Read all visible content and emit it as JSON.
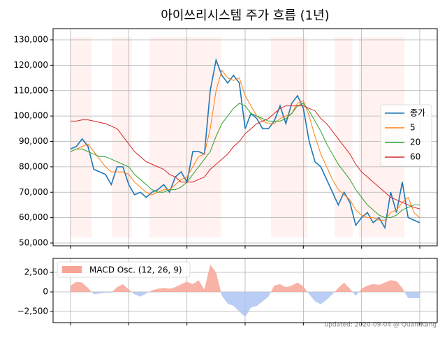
{
  "chart_data": [
    {
      "type": "line",
      "title": "아이쓰리시스템 주가 흐름 (1년)",
      "xlim": [
        -3,
        63
      ],
      "xticks": [
        0,
        10,
        20,
        30,
        40,
        50,
        60
      ],
      "ylim": [
        48900,
        134400
      ],
      "yticks": [
        {
          "value": 50000,
          "label": "50,000"
        },
        {
          "value": 60000,
          "label": "60,000"
        },
        {
          "value": 70000,
          "label": "70,000"
        },
        {
          "value": 80000,
          "label": "80,000"
        },
        {
          "value": 90000,
          "label": "90,000"
        },
        {
          "value": 100000,
          "label": "100,000"
        },
        {
          "value": 110000,
          "label": "110,000"
        },
        {
          "value": 120000,
          "label": "120,000"
        },
        {
          "value": 130000,
          "label": "130,000"
        }
      ],
      "grid": true,
      "legend": "right",
      "shade_color": "#fff2f0",
      "series": [
        {
          "name": "종가",
          "color": "#1f77b4",
          "values": [
            87000,
            88000,
            91000,
            88000,
            79000,
            78000,
            77000,
            73000,
            80000,
            80000,
            73000,
            69000,
            70000,
            68000,
            70000,
            71000,
            73000,
            70000,
            76000,
            78000,
            74000,
            86000,
            86000,
            85000,
            110000,
            122000,
            116000,
            113000,
            116000,
            113000,
            95000,
            101000,
            99000,
            95000,
            95000,
            98000,
            104000,
            97000,
            105000,
            108000,
            103000,
            90000,
            82000,
            80000,
            75000,
            70000,
            65000,
            70000,
            66000,
            57000,
            60000,
            62000,
            58000,
            60000,
            56000,
            70000,
            62000,
            74000,
            60000,
            59000,
            58000
          ]
        },
        {
          "name": "5",
          "color": "#ff7f0e",
          "values": [
            86000,
            87000,
            88000,
            89000,
            86000,
            83000,
            80000,
            78000,
            78000,
            78000,
            77000,
            74000,
            72000,
            70000,
            69000,
            70000,
            71000,
            71000,
            73000,
            75000,
            76000,
            80000,
            84000,
            85000,
            95000,
            110000,
            118000,
            115000,
            114000,
            115000,
            108000,
            104000,
            100000,
            98000,
            97000,
            97000,
            99000,
            100000,
            101000,
            105000,
            106000,
            100000,
            92000,
            85000,
            80000,
            75000,
            71000,
            69000,
            67000,
            63000,
            61000,
            60000,
            60000,
            59000,
            59000,
            62000,
            63000,
            66000,
            68000,
            62000,
            60000
          ]
        },
        {
          "name": "20",
          "color": "#2ca02c",
          "values": [
            86000,
            87000,
            87000,
            86000,
            85000,
            84000,
            84000,
            83000,
            82000,
            81000,
            80000,
            77000,
            75000,
            73000,
            71000,
            70000,
            70000,
            71000,
            71000,
            72000,
            74000,
            77000,
            80000,
            83000,
            86000,
            92000,
            97000,
            100000,
            103000,
            105000,
            104000,
            101000,
            100000,
            99000,
            98000,
            98000,
            98000,
            99000,
            101000,
            104000,
            105000,
            102000,
            98000,
            94000,
            89000,
            85000,
            81000,
            78000,
            75000,
            71000,
            68000,
            65000,
            63000,
            61000,
            60000,
            60000,
            61000,
            63000,
            64000,
            65000,
            65000
          ]
        },
        {
          "name": "60",
          "color": "#d62728",
          "values": [
            98000,
            98000,
            98500,
            98500,
            98000,
            97500,
            97000,
            96000,
            95000,
            92000,
            89000,
            86000,
            84000,
            82000,
            81000,
            80000,
            79000,
            77000,
            76000,
            74000,
            74000,
            74000,
            75000,
            76000,
            79000,
            81000,
            83000,
            85000,
            88000,
            90000,
            93000,
            95000,
            97000,
            98000,
            99000,
            101000,
            103000,
            104000,
            104000,
            104000,
            104000,
            103000,
            102000,
            99000,
            97000,
            94000,
            91000,
            88000,
            85000,
            81000,
            78000,
            76000,
            74000,
            72000,
            70000,
            68000,
            67000,
            66000,
            65000,
            64000,
            63500
          ]
        }
      ]
    },
    {
      "type": "area",
      "xlim": [
        -3,
        63
      ],
      "xticks": [
        0,
        10,
        20,
        30,
        40,
        50,
        60
      ],
      "ylim": [
        -3930,
        4290
      ],
      "yticks": [
        {
          "value": -2500,
          "label": "−2,500"
        },
        0,
        {
          "value": 2500,
          "label": "2,500"
        }
      ],
      "grid": true,
      "legend": "upper left",
      "series": [
        {
          "name": "MACD Osc. (12, 26, 9)",
          "color": "#f7a497",
          "negative_color": "#aec4f2",
          "values": [
            800,
            1300,
            1200,
            500,
            -300,
            -200,
            -100,
            -100,
            600,
            1000,
            300,
            -300,
            -600,
            -200,
            200,
            400,
            500,
            400,
            600,
            1000,
            1300,
            1000,
            1500,
            300,
            3500,
            2500,
            -500,
            -1500,
            -1800,
            -2500,
            -3200,
            -2000,
            -1800,
            -1200,
            -600,
            800,
            1000,
            600,
            800,
            1200,
            700,
            -300,
            -1200,
            -1600,
            -1000,
            -300,
            500,
            1200,
            400,
            -500,
            400,
            800,
            1000,
            900,
            1200,
            1500,
            1400,
            500,
            -800,
            -800,
            -800
          ]
        }
      ]
    }
  ],
  "footer": "updated: 2020-09-04 @ QuantKang"
}
